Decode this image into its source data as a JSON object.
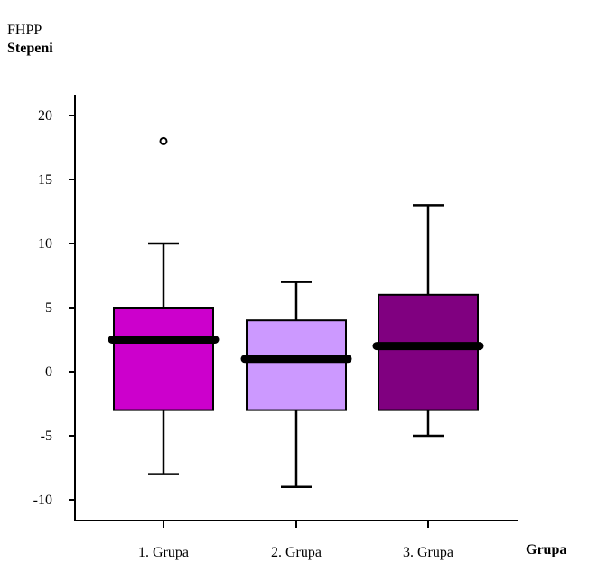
{
  "chart_data": {
    "type": "boxplot",
    "title": "FHPP",
    "ylabel": "Stepeni",
    "xlabel": "Grupa",
    "ylim": [
      -11.5,
      22
    ],
    "yticks": [
      20,
      15,
      10,
      5,
      0,
      -5,
      -10
    ],
    "grid": false,
    "categories": [
      "1. Grupa",
      "2. Grupa",
      "3. Grupa"
    ],
    "boxes": [
      {
        "category": "1. Grupa",
        "whisker_low": -8,
        "q1": -3,
        "median": 2.5,
        "q3": 5,
        "whisker_high": 10,
        "outliers": [
          18
        ],
        "color": "#cc00cc"
      },
      {
        "category": "2. Grupa",
        "whisker_low": -9,
        "q1": -3,
        "median": 1,
        "q3": 4,
        "whisker_high": 7,
        "outliers": [],
        "color": "#cc99ff"
      },
      {
        "category": "3. Grupa",
        "whisker_low": -5,
        "q1": -3,
        "median": 2,
        "q3": 6,
        "whisker_high": 13,
        "outliers": [],
        "color": "#800080"
      }
    ]
  }
}
